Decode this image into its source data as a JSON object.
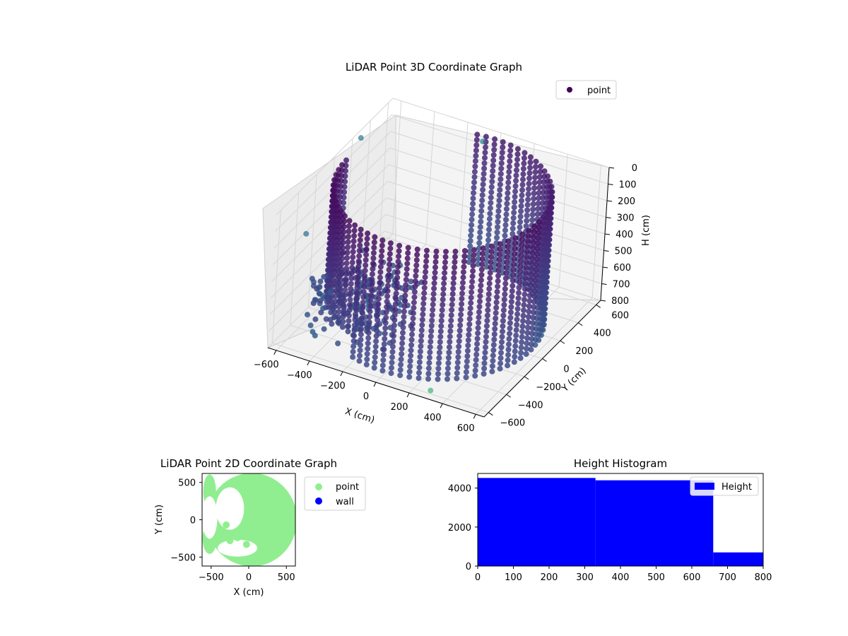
{
  "colors": {
    "viridis_dark": "#440154",
    "viridis_mid": "#3b528b",
    "viridis_blue": "#31688e",
    "light_green": "#90ee90",
    "wall_blue": "#0000ff",
    "hist_blue": "#0000ff"
  },
  "chart_data": [
    {
      "type": "scatter3d",
      "title": "LiDAR Point 3D Coordinate Graph",
      "xlabel": "X (cm)",
      "ylabel": "Y (cm)",
      "zlabel": "H (cm)",
      "x_ticks": [
        "−600",
        "−400",
        "−200",
        "0",
        "200",
        "400",
        "600"
      ],
      "y_ticks": [
        "−600",
        "−400",
        "−200",
        "0",
        "200",
        "400",
        "600"
      ],
      "z_ticks": [
        "0",
        "100",
        "200",
        "300",
        "400",
        "500",
        "600",
        "700",
        "800"
      ],
      "xlim": [
        -650,
        650
      ],
      "ylim": [
        -650,
        650
      ],
      "zlim": [
        0,
        800
      ],
      "zaxis_inverted": true,
      "legend": [
        {
          "label": "point",
          "color": "#440154"
        }
      ],
      "legend_position": "upper right",
      "colormap": "viridis",
      "structure": {
        "cylinder_center": [
          0,
          0
        ],
        "cylinder_radius": 580,
        "height_range": [
          0,
          800
        ],
        "open_gap_deg": [
          100,
          180
        ]
      },
      "grid": true
    },
    {
      "type": "scatter",
      "title": "LiDAR Point 2D Coordinate Graph",
      "xlabel": "X (cm)",
      "ylabel": "Y (cm)",
      "x_ticks": [
        "−500",
        "0",
        "500"
      ],
      "y_ticks": [
        "−500",
        "0",
        "500"
      ],
      "xlim": [
        -620,
        620
      ],
      "ylim": [
        -620,
        620
      ],
      "series": [
        {
          "name": "point",
          "color": "#90ee90"
        },
        {
          "name": "wall",
          "color": "#0000ff"
        }
      ],
      "legend_position": "outside right"
    },
    {
      "type": "bar",
      "title": "Height Histogram",
      "x_ticks": [
        "0",
        "100",
        "200",
        "300",
        "400",
        "500",
        "600",
        "700",
        "800"
      ],
      "y_ticks": [
        "0",
        "2000",
        "4000"
      ],
      "xlim": [
        0,
        800
      ],
      "ylim": [
        0,
        4750
      ],
      "bins": [
        {
          "start": 0,
          "end": 330,
          "count": 4520
        },
        {
          "start": 330,
          "end": 660,
          "count": 4400
        },
        {
          "start": 660,
          "end": 800,
          "count": 700
        }
      ],
      "legend": [
        {
          "label": "Height",
          "color": "#0000ff"
        }
      ],
      "legend_position": "upper right"
    }
  ]
}
